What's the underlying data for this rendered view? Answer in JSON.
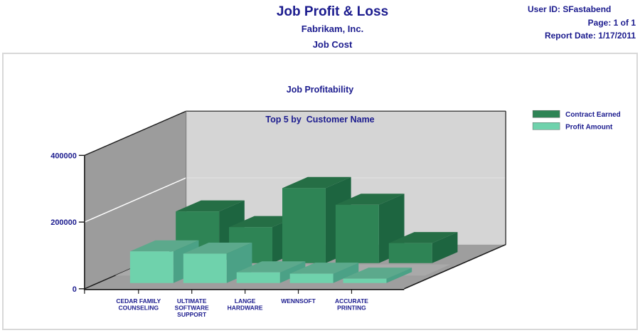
{
  "header": {
    "title": "Job Profit & Loss",
    "company": "Fabrikam, Inc.",
    "report_name": "Job Cost",
    "user_id": "User ID: SFastabend",
    "page": "Page: 1 of 1",
    "report_date": "Report Date: 1/17/2011"
  },
  "chart_data": {
    "type": "bar",
    "projection": "3d",
    "title": "Job Profitability",
    "subtitle": "Top 5 by  Customer Name",
    "categories": [
      {
        "id": "cedar-family-counseling",
        "lines": [
          "CEDAR FAMILY",
          "COUNSELING"
        ]
      },
      {
        "id": "ultimate-software-support",
        "lines": [
          "ULTIMATE",
          "SOFTWARE",
          "SUPPORT"
        ]
      },
      {
        "id": "lange-hardware",
        "lines": [
          "LANGE",
          "HARDWARE"
        ]
      },
      {
        "id": "wennsoft",
        "lines": [
          "WENNSOFT"
        ]
      },
      {
        "id": "accurate-printing",
        "lines": [
          "ACCURATE",
          "PRINTING"
        ]
      }
    ],
    "series": [
      {
        "name": "Contract Earned",
        "id": "contract-earned",
        "values": [
          155000,
          108000,
          225000,
          175000,
          60000
        ],
        "colors": {
          "front": "#2E8455",
          "top": "#256E45",
          "side": "#1D6540"
        }
      },
      {
        "name": "Profit Amount",
        "id": "profit-amount",
        "values": [
          95000,
          88000,
          32000,
          28000,
          13000
        ],
        "colors": {
          "front": "#6FD2AC",
          "top": "#5CA98C",
          "side": "#4BA186"
        }
      }
    ],
    "ylim": [
      0,
      400000
    ],
    "yticks": [
      0,
      200000,
      400000
    ],
    "ytick_labels": [
      "0",
      "200000",
      "400000"
    ],
    "legend_position": "top-right",
    "grid": "horizontal line at 200000 on walls"
  },
  "colors": {
    "text_navy": "#1b1b8e",
    "wall_left": "#9C9C9C",
    "wall_back": "#D5D5D5",
    "floor": "#9E9E9E",
    "floor_band": "#A9A9A9",
    "gridline_left_wall": "#FFFFFF",
    "gridline_back_wall": "#E2E2E2",
    "outline": "#1a1a1a",
    "wall_junction": "#7a7a7a",
    "frame_border": "#D8D8D8"
  }
}
